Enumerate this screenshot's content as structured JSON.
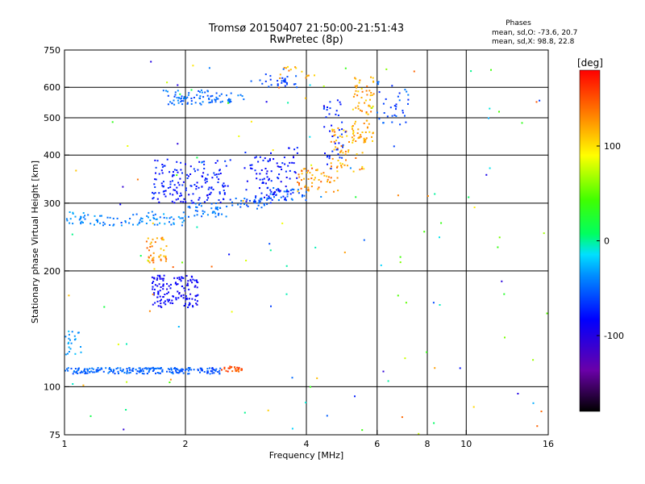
{
  "chart_data": {
    "type": "scatter",
    "title": "Tromsø 20150407 21:50:00-21:51:43",
    "subtitle": "RwPretec (8p)",
    "xlabel": "Frequency [MHz]",
    "ylabel": "Stationary phase Virtual Height [km]",
    "xscale": "log",
    "yscale": "log",
    "xlim": [
      1,
      16
    ],
    "ylim": [
      75,
      750
    ],
    "xticks": [
      1,
      2,
      4,
      6,
      8,
      10,
      16
    ],
    "yticks": [
      75,
      100,
      200,
      300,
      400,
      500,
      600,
      750
    ],
    "grid": true,
    "phases_title": "Phases",
    "phases_lines": [
      "mean, sd,O: -73.6, 20.7",
      "mean, sd,X: 98.8, 22.8"
    ],
    "colorbar_label": "[deg]",
    "colorbar_ticks": [
      100,
      0,
      -100
    ],
    "colorbar_range": [
      -180,
      180
    ],
    "clusters": [
      {
        "x": [
          1.0,
          1.35
        ],
        "y": [
          108,
          112
        ],
        "phase": [
          -80,
          -60
        ],
        "n": 70
      },
      {
        "x": [
          1.35,
          1.95
        ],
        "y": [
          108,
          112
        ],
        "phase": [
          -80,
          -60
        ],
        "n": 90
      },
      {
        "x": [
          1.95,
          2.45
        ],
        "y": [
          108,
          112
        ],
        "phase": [
          -85,
          -65
        ],
        "n": 50
      },
      {
        "x": [
          2.4,
          2.8
        ],
        "y": [
          109,
          113
        ],
        "phase": [
          140,
          170
        ],
        "n": 25
      },
      {
        "x": [
          1.0,
          1.1
        ],
        "y": [
          120,
          140
        ],
        "phase": [
          -60,
          -40
        ],
        "n": 22
      },
      {
        "x": [
          1.0,
          1.12
        ],
        "y": [
          265,
          285
        ],
        "phase": [
          -65,
          -45
        ],
        "n": 20
      },
      {
        "x": [
          1.12,
          1.5
        ],
        "y": [
          262,
          280
        ],
        "phase": [
          -70,
          -50
        ],
        "n": 30
      },
      {
        "x": [
          1.5,
          2.0
        ],
        "y": [
          262,
          285
        ],
        "phase": [
          -70,
          -45
        ],
        "n": 45
      },
      {
        "x": [
          2.0,
          2.6
        ],
        "y": [
          275,
          300
        ],
        "phase": [
          -75,
          -55
        ],
        "n": 40
      },
      {
        "x": [
          2.6,
          3.2
        ],
        "y": [
          290,
          310
        ],
        "phase": [
          -85,
          -60
        ],
        "n": 35
      },
      {
        "x": [
          3.2,
          4.0
        ],
        "y": [
          305,
          330
        ],
        "phase": [
          -80,
          -60
        ],
        "n": 35
      },
      {
        "x": [
          3.8,
          4.8
        ],
        "y": [
          320,
          370
        ],
        "phase": [
          110,
          150
        ],
        "n": 55
      },
      {
        "x": [
          4.6,
          5.6
        ],
        "y": [
          360,
          470
        ],
        "phase": [
          100,
          145
        ],
        "n": 60
      },
      {
        "x": [
          5.2,
          5.9
        ],
        "y": [
          420,
          640
        ],
        "phase": [
          100,
          145
        ],
        "n": 80
      },
      {
        "x": [
          1.6,
          1.8
        ],
        "y": [
          210,
          245
        ],
        "phase": [
          110,
          145
        ],
        "n": 40
      },
      {
        "x": [
          1.65,
          2.15
        ],
        "y": [
          160,
          195
        ],
        "phase": [
          -110,
          -95
        ],
        "n": 140
      },
      {
        "x": [
          1.65,
          2.6
        ],
        "y": [
          300,
          390
        ],
        "phase": [
          -105,
          -80
        ],
        "n": 160
      },
      {
        "x": [
          1.75,
          2.3
        ],
        "y": [
          540,
          590
        ],
        "phase": [
          -80,
          -55
        ],
        "n": 60
      },
      {
        "x": [
          2.3,
          2.8
        ],
        "y": [
          545,
          580
        ],
        "phase": [
          -80,
          -55
        ],
        "n": 30
      },
      {
        "x": [
          2.8,
          3.8
        ],
        "y": [
          300,
          420
        ],
        "phase": [
          -110,
          -85
        ],
        "n": 100
      },
      {
        "x": [
          2.9,
          3.8
        ],
        "y": [
          600,
          650
        ],
        "phase": [
          -90,
          -70
        ],
        "n": 30
      },
      {
        "x": [
          3.4,
          4.2
        ],
        "y": [
          630,
          680
        ],
        "phase": [
          100,
          140
        ],
        "n": 15
      },
      {
        "x": [
          4.4,
          4.95
        ],
        "y": [
          360,
          560
        ],
        "phase": [
          -100,
          -80
        ],
        "n": 40
      },
      {
        "x": [
          6.0,
          7.2
        ],
        "y": [
          480,
          620
        ],
        "phase": [
          -90,
          -60
        ],
        "n": 35
      },
      {
        "x": [
          1.0,
          16.0
        ],
        "y": [
          75,
          700
        ],
        "phase": [
          -120,
          150
        ],
        "n": 140
      }
    ]
  }
}
